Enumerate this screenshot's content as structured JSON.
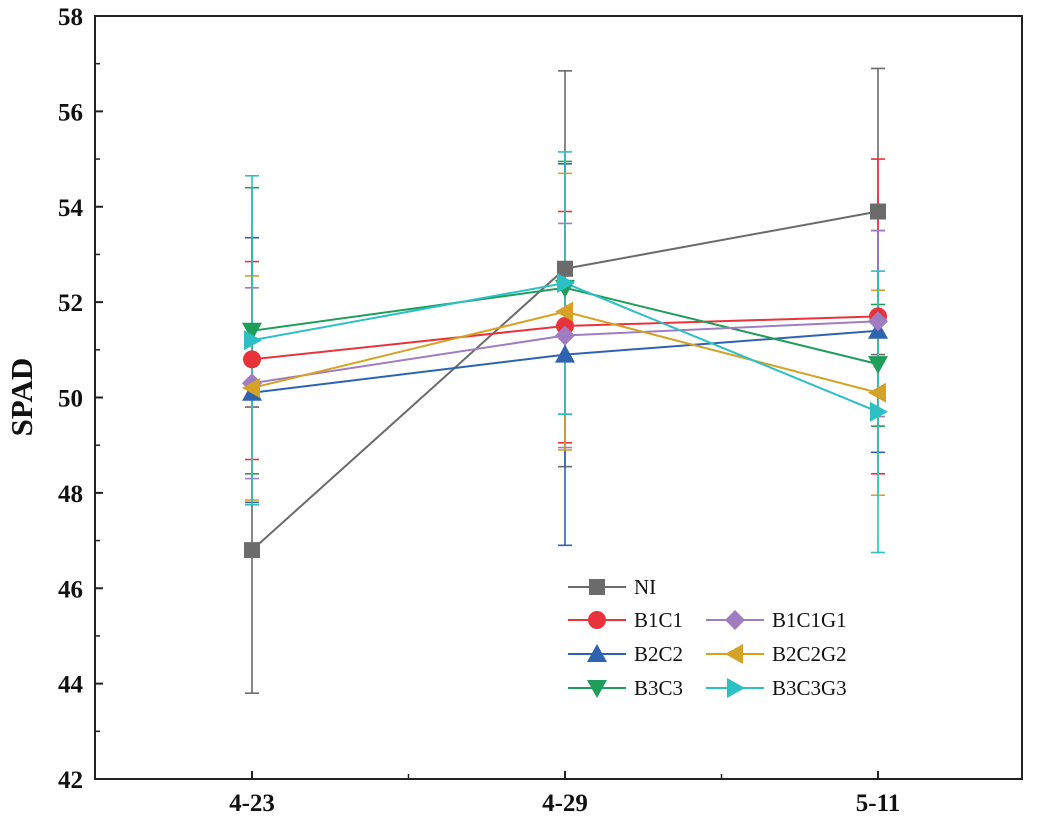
{
  "chart_data": {
    "type": "line",
    "title": "",
    "xlabel": "",
    "ylabel": "SPAD",
    "ylim": [
      42,
      58
    ],
    "yticks": [
      42,
      44,
      46,
      48,
      50,
      52,
      54,
      56,
      58
    ],
    "categories": [
      "4-23",
      "4-29",
      "5-11"
    ],
    "grid": false,
    "legend_position": "bottom-right",
    "series": [
      {
        "name": "NI",
        "color": "#6b6b6b",
        "marker": "square",
        "values": [
          46.8,
          52.7,
          53.9
        ],
        "error_low": [
          43.8,
          48.55,
          50.9
        ],
        "error_high": [
          49.8,
          56.85,
          56.9
        ]
      },
      {
        "name": "B1C1",
        "color": "#e8333a",
        "marker": "circle",
        "values": [
          50.8,
          51.5,
          51.7
        ],
        "error_low": [
          48.7,
          49.05,
          48.4
        ],
        "error_high": [
          52.85,
          53.9,
          55.0
        ]
      },
      {
        "name": "B2C2",
        "color": "#2e63b0",
        "marker": "triangle-up",
        "values": [
          50.1,
          50.9,
          51.4
        ],
        "error_low": [
          47.8,
          46.9,
          48.85
        ],
        "error_high": [
          53.35,
          54.9,
          53.5
        ]
      },
      {
        "name": "B3C3",
        "color": "#1f9d5a",
        "marker": "triangle-down",
        "values": [
          51.4,
          52.3,
          50.7
        ],
        "error_low": [
          48.4,
          49.65,
          49.4
        ],
        "error_high": [
          54.4,
          54.95,
          51.95
        ]
      },
      {
        "name": "B1C1G1",
        "color": "#a07cc0",
        "marker": "diamond",
        "values": [
          50.3,
          51.3,
          51.6
        ],
        "error_low": [
          48.3,
          48.95,
          49.6
        ],
        "error_high": [
          52.3,
          53.65,
          53.5
        ]
      },
      {
        "name": "B2C2G2",
        "color": "#d4a226",
        "marker": "triangle-left",
        "values": [
          50.2,
          51.8,
          50.1
        ],
        "error_low": [
          47.85,
          48.9,
          47.95
        ],
        "error_high": [
          52.55,
          54.7,
          52.25
        ]
      },
      {
        "name": "B3C3G3",
        "color": "#2cc0c4",
        "marker": "triangle-right",
        "values": [
          51.2,
          52.4,
          49.7
        ],
        "error_low": [
          47.75,
          49.65,
          46.75
        ],
        "error_high": [
          54.65,
          55.15,
          52.65
        ]
      }
    ],
    "legend_rows": [
      [
        "NI"
      ],
      [
        "B1C1",
        "B1C1G1"
      ],
      [
        "B2C2",
        "B2C2G2"
      ],
      [
        "B3C3",
        "B3C3G3"
      ]
    ]
  }
}
